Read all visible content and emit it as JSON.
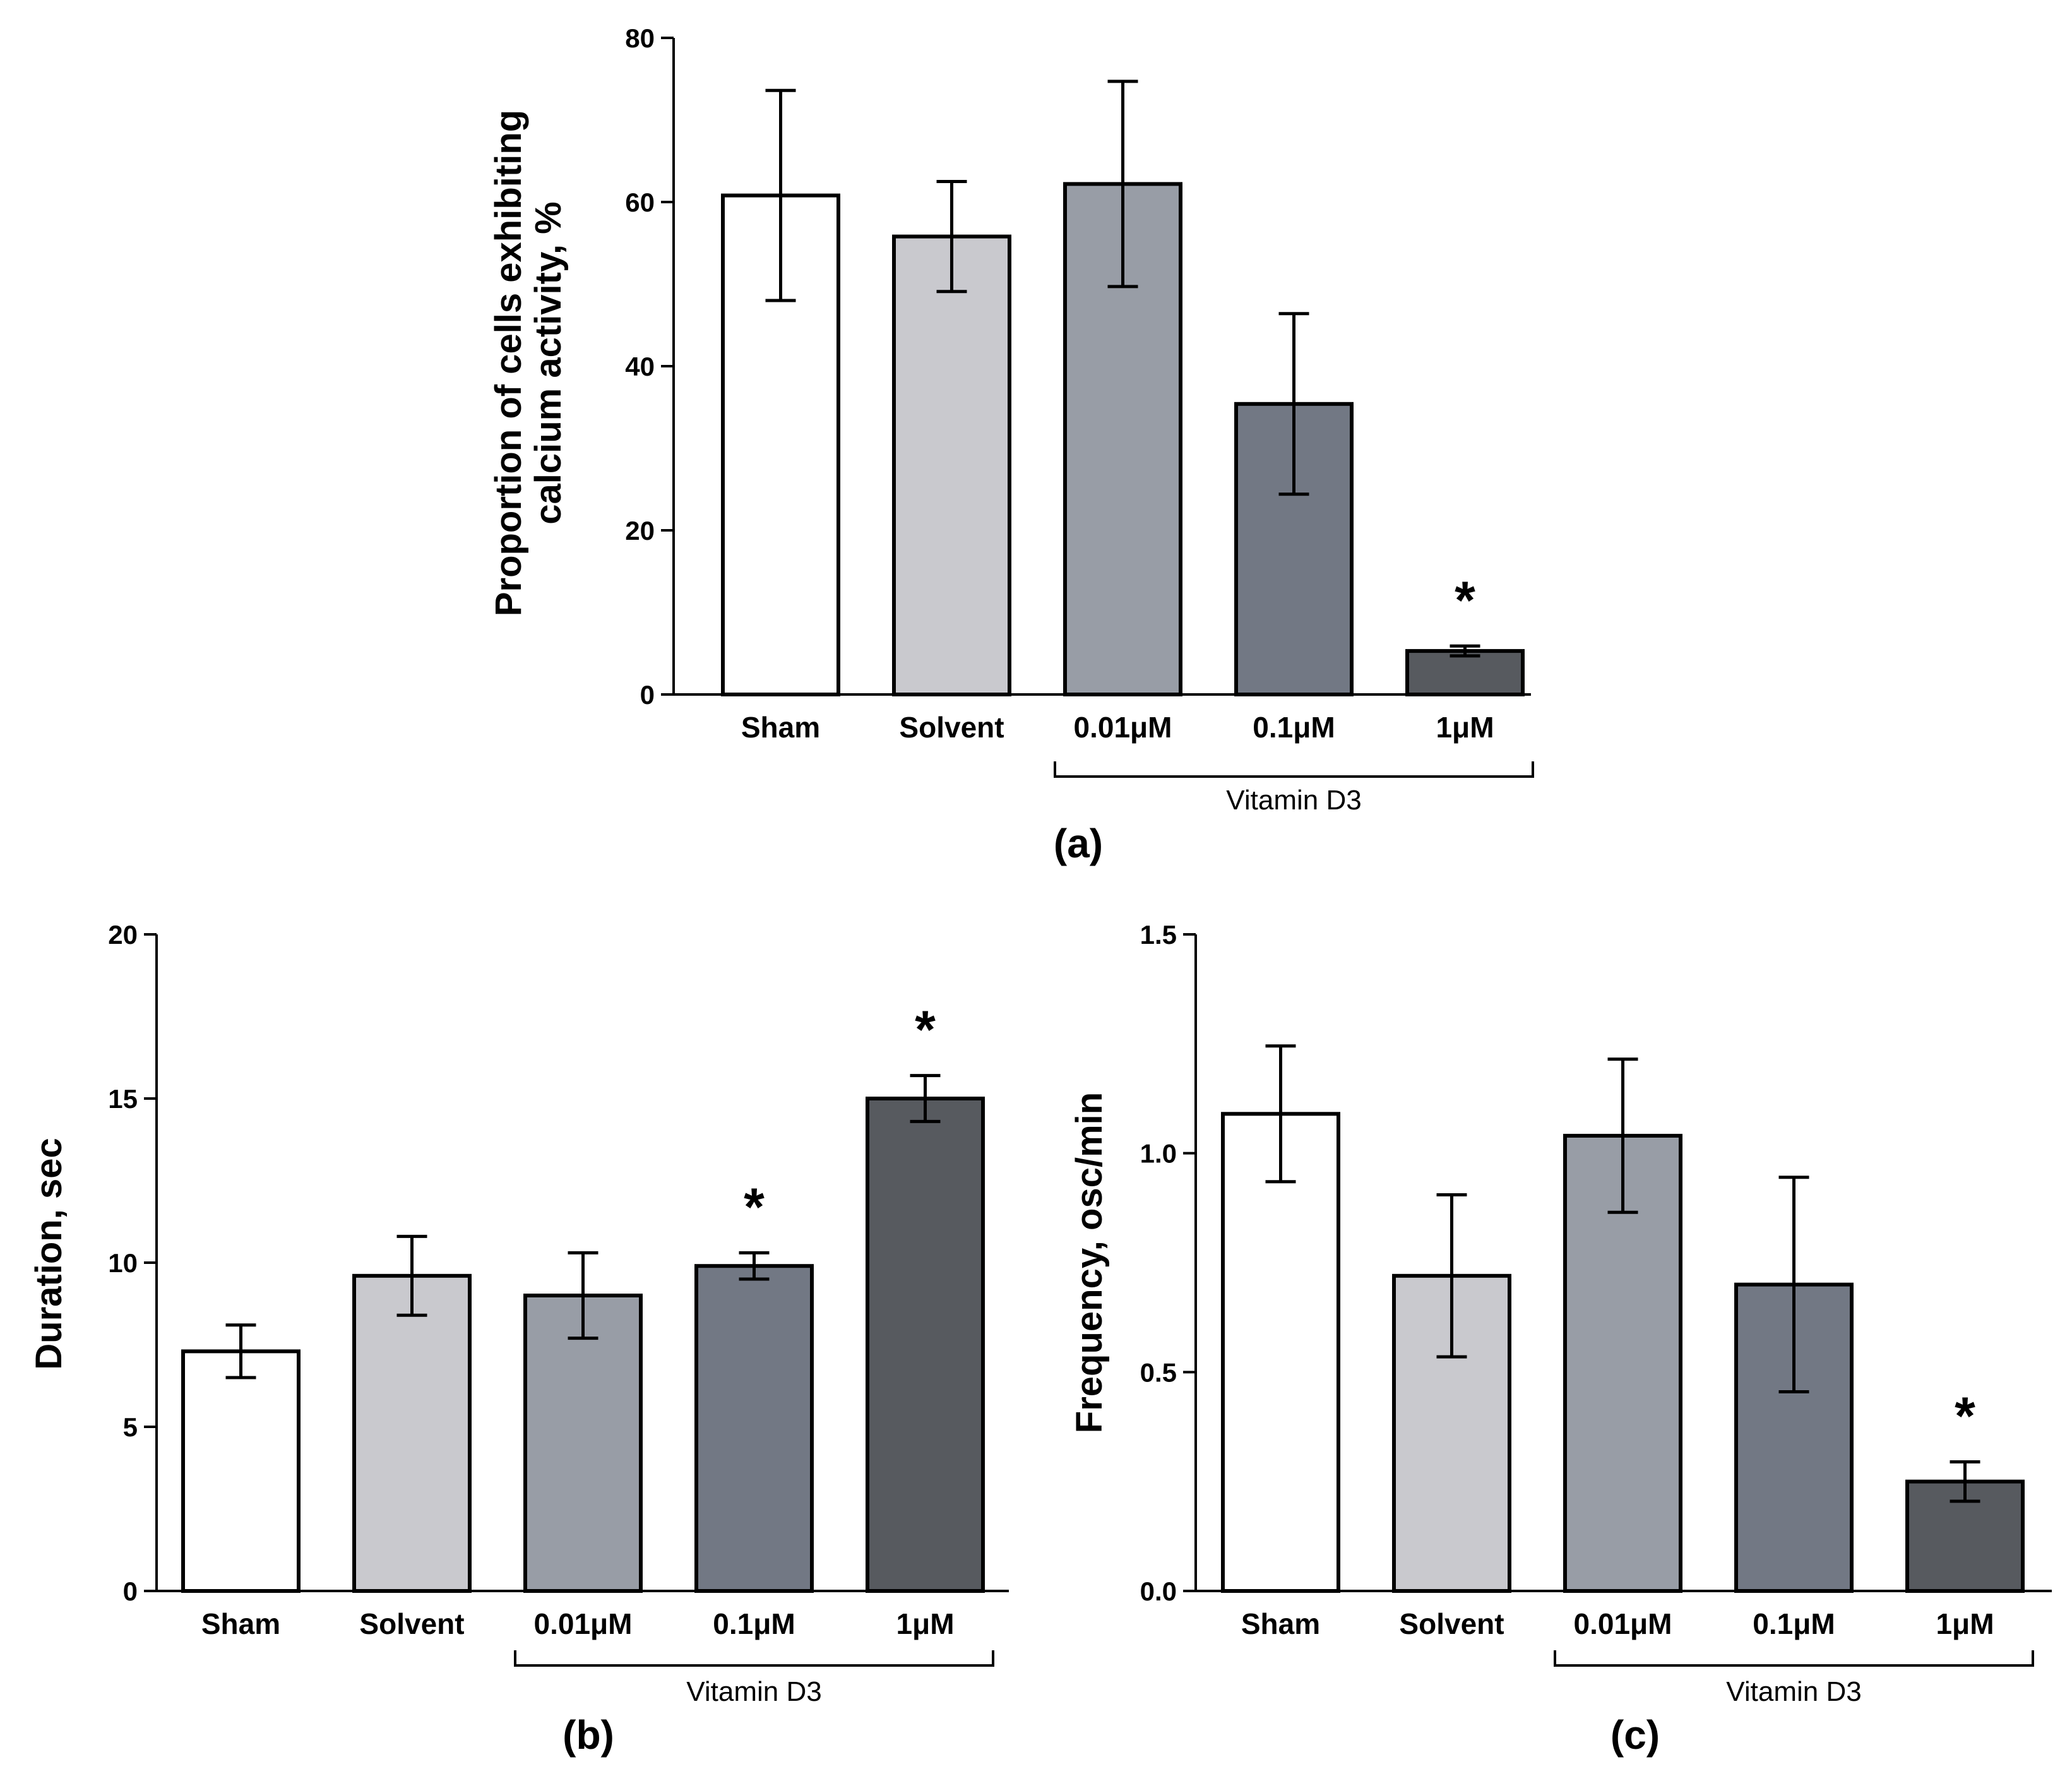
{
  "chart_data": [
    {
      "id": "a",
      "type": "bar",
      "panel_label": "(a)",
      "categories": [
        "Sham",
        "Solvent",
        "0.01μM",
        "0.1μM",
        "1μM"
      ],
      "values": [
        60.8,
        55.8,
        62.2,
        35.4,
        5.3
      ],
      "error": [
        12.8,
        6.7,
        12.5,
        11.0,
        0.6
      ],
      "significant": [
        false,
        false,
        false,
        false,
        true
      ],
      "sig_marker": "*",
      "colors": [
        "#ffffff",
        "#c9c9ce",
        "#989da6",
        "#727884",
        "#575a5f"
      ],
      "yticks": [
        0,
        20,
        40,
        60,
        80
      ],
      "ytick_labels": [
        "0",
        "20",
        "40",
        "60",
        "80"
      ],
      "ylim": [
        0,
        80
      ],
      "ylabel_lines": [
        "Proportion of cells exhibiting",
        "calcium activity, %"
      ],
      "group_label": "Vitamin D3",
      "group_range": [
        2,
        4
      ]
    },
    {
      "id": "b",
      "type": "bar",
      "panel_label": "(b)",
      "categories": [
        "Sham",
        "Solvent",
        "0.01μM",
        "0.1μM",
        "1μM"
      ],
      "values": [
        7.3,
        9.6,
        9.0,
        9.9,
        15.0
      ],
      "error": [
        0.8,
        1.2,
        1.3,
        0.4,
        0.7
      ],
      "significant": [
        false,
        false,
        false,
        true,
        true
      ],
      "sig_marker": "*",
      "colors": [
        "#ffffff",
        "#c9c9ce",
        "#989da6",
        "#727884",
        "#575a5f"
      ],
      "yticks": [
        0,
        5,
        10,
        15,
        20
      ],
      "ytick_labels": [
        "0",
        "5",
        "10",
        "15",
        "20"
      ],
      "ylim": [
        0,
        20
      ],
      "ylabel_lines": [
        "Duration, sec"
      ],
      "group_label": "Vitamin D3",
      "group_range": [
        2,
        4
      ]
    },
    {
      "id": "c",
      "type": "bar",
      "panel_label": "(c)",
      "categories": [
        "Sham",
        "Solvent",
        "0.01μM",
        "0.1μM",
        "1μM"
      ],
      "values": [
        1.09,
        0.72,
        1.04,
        0.7,
        0.25
      ],
      "error": [
        0.155,
        0.185,
        0.175,
        0.245,
        0.045
      ],
      "significant": [
        false,
        false,
        false,
        false,
        true
      ],
      "sig_marker": "*",
      "colors": [
        "#ffffff",
        "#c9c9ce",
        "#989da6",
        "#727884",
        "#575a5f"
      ],
      "yticks": [
        0,
        0.5,
        1.0,
        1.5
      ],
      "ytick_labels": [
        "0.0",
        "0.5",
        "1.0",
        "1.5"
      ],
      "ylim": [
        0,
        1.5
      ],
      "ylabel_lines": [
        "Frequency, osc/min"
      ],
      "group_label": "Vitamin D3",
      "group_range": [
        2,
        4
      ]
    }
  ]
}
